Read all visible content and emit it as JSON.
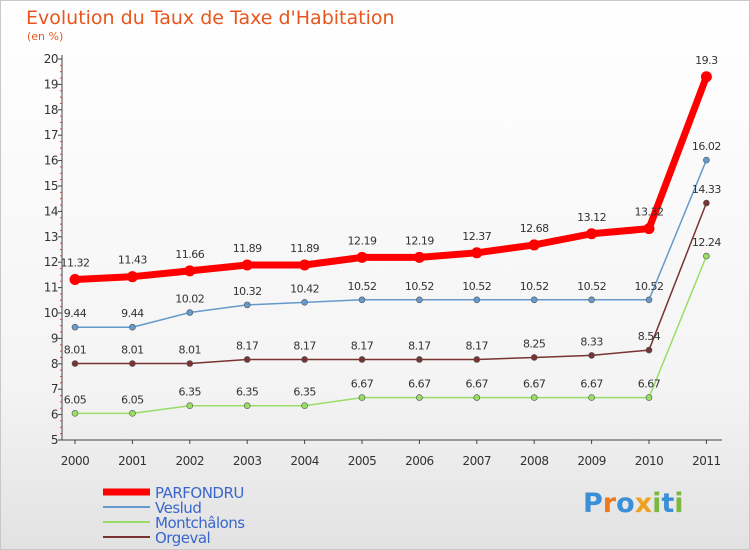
{
  "header": {
    "title": "Evolution du Taux de Taxe d'Habitation",
    "subtitle": "(en %)"
  },
  "logo": {
    "text": "Proxiti",
    "letters": [
      "P",
      "r",
      "o",
      "x",
      "i",
      "t",
      "i"
    ],
    "colors": [
      "#3a8fd6",
      "#f07a1a",
      "#3a8fd6",
      "#f0a020",
      "#7ab840",
      "#3a8fd6",
      "#7ab840"
    ]
  },
  "chart_data": {
    "type": "line",
    "title": "Evolution du Taux de Taxe d'Habitation",
    "subtitle": "(en %)",
    "xlabel": "",
    "ylabel": "",
    "x": [
      "2000",
      "2001",
      "2002",
      "2003",
      "2004",
      "2005",
      "2006",
      "2007",
      "2008",
      "2009",
      "2010",
      "2011"
    ],
    "ylim": [
      5,
      20
    ],
    "yticks": [
      "5",
      "6",
      "7",
      "8",
      "9",
      "10",
      "11",
      "12",
      "13",
      "14",
      "15",
      "16",
      "17",
      "18",
      "19",
      "20"
    ],
    "grid": false,
    "legend_position": "bottom-left",
    "series": [
      {
        "name": "PARFONDRU",
        "color": "#ff0000",
        "values": [
          11.32,
          11.43,
          11.66,
          11.89,
          11.89,
          12.19,
          12.19,
          12.37,
          12.68,
          13.12,
          13.32,
          19.3
        ],
        "labels": [
          "11.32",
          "11.43",
          "11.66",
          "11.89",
          "11.89",
          "12.19",
          "12.19",
          "12.37",
          "12.68",
          "13.12",
          "13.32",
          "19.3"
        ]
      },
      {
        "name": "Veslud",
        "color": "#6699cc",
        "values": [
          9.44,
          9.44,
          10.02,
          10.32,
          10.42,
          10.52,
          10.52,
          10.52,
          10.52,
          10.52,
          10.52,
          16.02
        ],
        "labels": [
          "9.44",
          "9.44",
          "10.02",
          "10.32",
          "10.42",
          "10.52",
          "10.52",
          "10.52",
          "10.52",
          "10.52",
          "10.52",
          "16.02"
        ]
      },
      {
        "name": "Montchâlons",
        "color": "#99dd66",
        "values": [
          6.05,
          6.05,
          6.35,
          6.35,
          6.35,
          6.67,
          6.67,
          6.67,
          6.67,
          6.67,
          6.67,
          12.24
        ],
        "labels": [
          "6.05",
          "6.05",
          "6.35",
          "6.35",
          "6.35",
          "6.67",
          "6.67",
          "6.67",
          "6.67",
          "6.67",
          "6.67",
          "12.24"
        ]
      },
      {
        "name": "Orgeval",
        "color": "#7a3333",
        "values": [
          8.01,
          8.01,
          8.01,
          8.17,
          8.17,
          8.17,
          8.17,
          8.17,
          8.25,
          8.33,
          8.54,
          14.33
        ],
        "labels": [
          "8.01",
          "8.01",
          "8.01",
          "8.17",
          "8.17",
          "8.17",
          "8.17",
          "8.17",
          "8.25",
          "8.33",
          "8.54",
          "14.33"
        ]
      }
    ]
  }
}
